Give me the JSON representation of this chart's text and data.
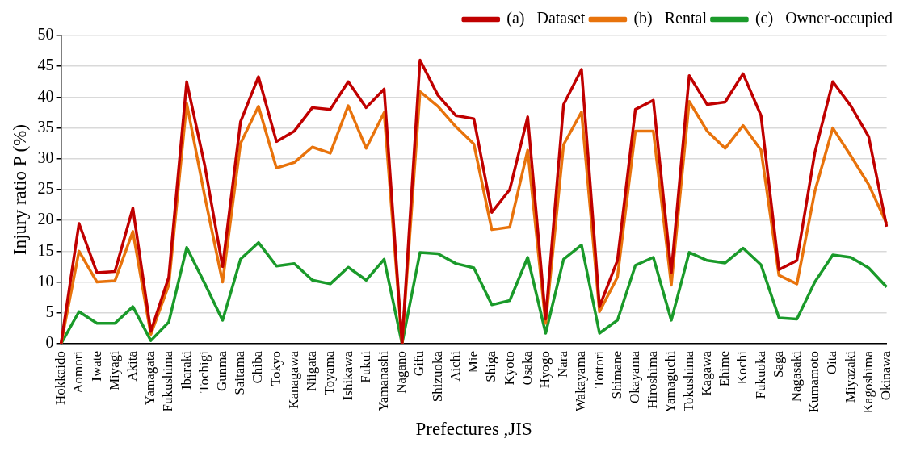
{
  "chart_data": {
    "type": "line",
    "xlabel": "Prefectures ,JIS",
    "ylabel": "Injury ratio P (%)",
    "categories": [
      "Hokkaido",
      "Aomori",
      "Iwate",
      "Miyagi",
      "Akita",
      "Yamagata",
      "Fukushima",
      "Ibaraki",
      "Tochigi",
      "Gunma",
      "Saitama",
      "Chiba",
      "Tokyo",
      "Kanagawa",
      "Niigata",
      "Toyama",
      "Ishikawa",
      "Fukui",
      "Yamanashi",
      "Nagano",
      "Gifu",
      "Shizuoka",
      "Aichi",
      "Mie",
      "Shiga",
      "Kyoto",
      "Osaka",
      "Hyogo",
      "Nara",
      "Wakayama",
      "Tottori",
      "Shimane",
      "Okayama",
      "Hiroshima",
      "Yamaguchi",
      "Tokushima",
      "Kagawa",
      "Ehime",
      "Kochi",
      "Fukuoka",
      "Saga",
      "Nagasaki",
      "Kumamoto",
      "Oita",
      "Miyazaki",
      "Kagoshima",
      "Okinawa"
    ],
    "series": [
      {
        "name": "(a)   Dataset",
        "color": "#c00000",
        "values": [
          0,
          19.5,
          11.5,
          11.7,
          22,
          2,
          10.8,
          42.5,
          29,
          12.5,
          36,
          43.3,
          32.8,
          34.5,
          38.3,
          38,
          42.5,
          38.3,
          41.3,
          0,
          46,
          40.3,
          37,
          36.5,
          21.3,
          25,
          36.8,
          4,
          38.8,
          44.5,
          6,
          13.5,
          38,
          39.5,
          11.5,
          43.5,
          38.8,
          39.2,
          43.8,
          37,
          12,
          13.5,
          31,
          42.5,
          38.6,
          33.6,
          19
        ]
      },
      {
        "name": "(b)   Rental",
        "color": "#e8730c",
        "values": [
          0,
          15,
          10,
          10.2,
          18.2,
          1.5,
          9.5,
          39,
          24,
          10,
          32.5,
          38.5,
          28.5,
          29.4,
          31.9,
          30.9,
          38.6,
          31.7,
          37.5,
          0,
          40.9,
          38.5,
          35.2,
          32.4,
          18.5,
          18.9,
          31.4,
          3.3,
          32.3,
          37.6,
          5.2,
          10.8,
          34.5,
          34.5,
          9.5,
          39.3,
          34.5,
          31.7,
          35.4,
          31.4,
          11.1,
          9.7,
          24.7,
          35,
          30.5,
          25.8,
          19.5
        ]
      },
      {
        "name": "(c)   Owner-occupied",
        "color": "#1a9a2a",
        "values": [
          0,
          5.2,
          3.3,
          3.3,
          6,
          0.5,
          3.5,
          15.6,
          9.8,
          3.8,
          13.7,
          16.4,
          12.6,
          13,
          10.3,
          9.7,
          12.4,
          10.3,
          13.7,
          0,
          14.8,
          14.6,
          13,
          12.3,
          6.3,
          7,
          14,
          1.7,
          13.7,
          16,
          1.7,
          3.8,
          12.7,
          14,
          3.8,
          14.8,
          13.5,
          13.1,
          15.5,
          12.8,
          4.2,
          4,
          10,
          14.4,
          14,
          12.3,
          9.2
        ]
      }
    ],
    "ylim": [
      0,
      50
    ],
    "yticks": [
      0,
      5,
      10,
      15,
      20,
      25,
      30,
      35,
      40,
      45,
      50
    ],
    "grid": "y",
    "legend": "top right",
    "marker": "none",
    "line_style": "solid"
  }
}
